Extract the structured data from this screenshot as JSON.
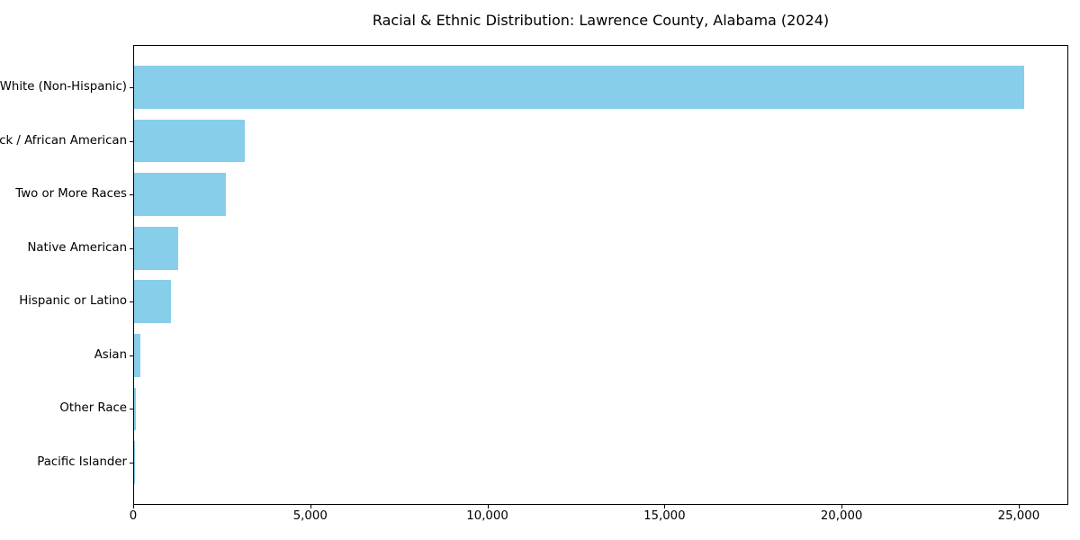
{
  "chart_data": {
    "type": "bar",
    "orientation": "horizontal",
    "title": "Racial & Ethnic Distribution: Lawrence County, Alabama (2024)",
    "categories": [
      "White (Non-Hispanic)",
      "Black / African American",
      "Two or More Races",
      "Native American",
      "Hispanic or Latino",
      "Asian",
      "Other Race",
      "Pacific Islander"
    ],
    "values": [
      25130,
      3130,
      2580,
      1240,
      1030,
      175,
      40,
      10
    ],
    "xlabel": "",
    "ylabel": "",
    "xlim": [
      0,
      26400
    ],
    "xticks": [
      0,
      5000,
      10000,
      15000,
      20000,
      25000
    ],
    "xtick_labels": [
      "0",
      "5,000",
      "10,000",
      "15,000",
      "20,000",
      "25,000"
    ],
    "bar_color": "#87CEEB",
    "spine_color": "#000000",
    "background_color": "#FFFFFF",
    "grid": false,
    "legend": false,
    "bar_width_fraction": 0.8
  }
}
